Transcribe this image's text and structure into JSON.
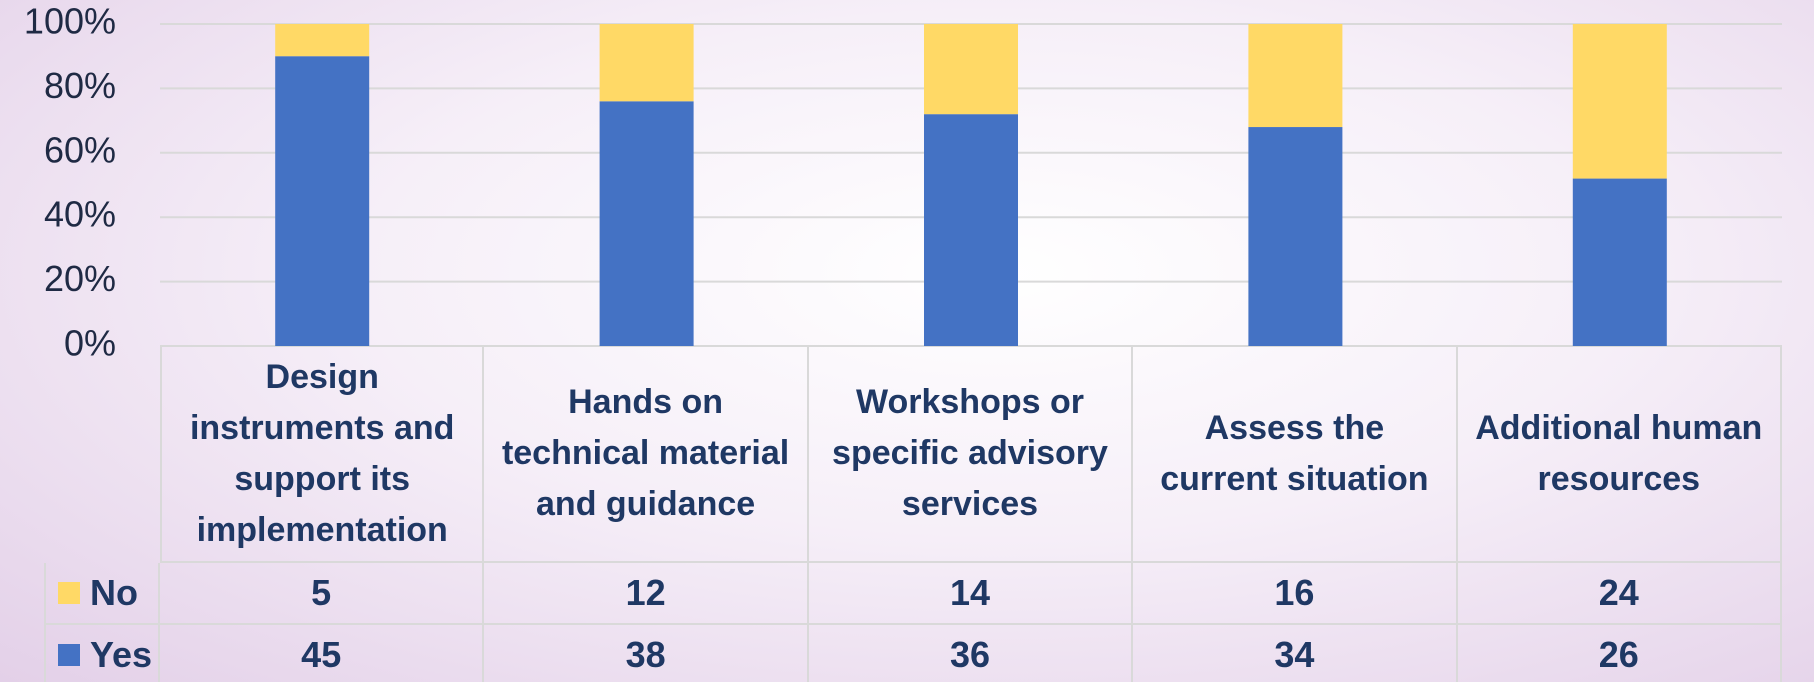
{
  "chart_data": {
    "type": "bar",
    "stacking": "percent",
    "categories": [
      "Design instruments and support its implementation",
      "Hands on technical material and guidance",
      "Workshops or specific advisory services",
      "Assess the current situation",
      "Additional human resources"
    ],
    "series": [
      {
        "name": "No",
        "color": "#ffd966",
        "values": [
          5,
          12,
          14,
          16,
          24
        ]
      },
      {
        "name": "Yes",
        "color": "#4472c4",
        "values": [
          45,
          38,
          36,
          34,
          26
        ]
      }
    ],
    "ylim": [
      0,
      100
    ],
    "yticks": [
      {
        "value": 0,
        "label": "0%"
      },
      {
        "value": 20,
        "label": "20%"
      },
      {
        "value": 40,
        "label": "40%"
      },
      {
        "value": 60,
        "label": "60%"
      },
      {
        "value": 80,
        "label": "80%"
      },
      {
        "value": 100,
        "label": "100%"
      }
    ],
    "grid": true,
    "data_table": true
  }
}
